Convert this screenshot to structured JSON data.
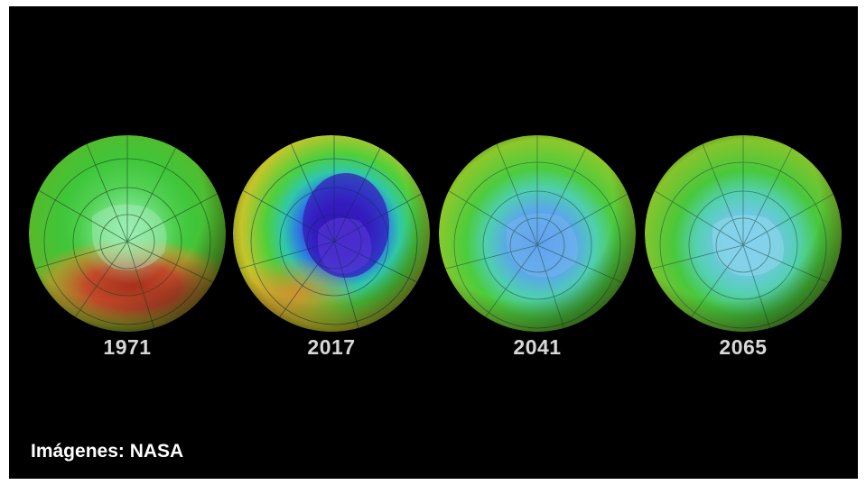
{
  "figure": {
    "globes": [
      {
        "year": "1971",
        "hole_level": 0.15
      },
      {
        "year": "2017",
        "hole_level": 1.0
      },
      {
        "year": "2041",
        "hole_level": 0.55
      },
      {
        "year": "2065",
        "hole_level": 0.35
      }
    ],
    "credit": "Imágenes: NASA",
    "colors": {
      "background": "#000000",
      "green": "#3fc63a",
      "orange": "#d2702a",
      "red": "#a7301c",
      "blue": "#3a4fd8",
      "deep_blue": "#3316b8",
      "light_blue": "#5fb6e6"
    }
  }
}
